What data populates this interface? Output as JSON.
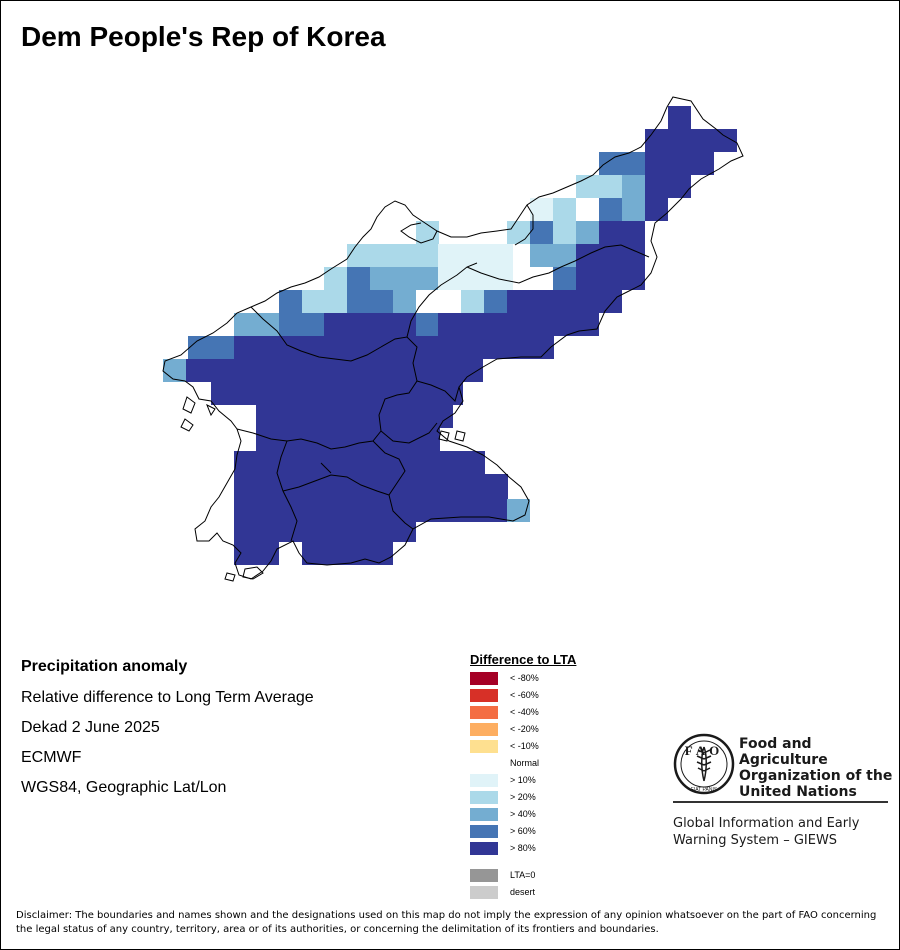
{
  "title": "Dem People's Rep of Korea",
  "info": {
    "heading": "Precipitation anomaly",
    "line1": "Relative difference to Long Term Average",
    "line2": "Dekad 2 June 2025",
    "line3": "ECMWF",
    "line4": "WGS84, Geographic Lat/Lon"
  },
  "legend": {
    "title": "Difference to LTA",
    "items": [
      {
        "label": "< -80%",
        "color": "#a50026"
      },
      {
        "label": "< -60%",
        "color": "#d73027"
      },
      {
        "label": "< -40%",
        "color": "#f46d43"
      },
      {
        "label": "< -20%",
        "color": "#fdae61"
      },
      {
        "label": "< -10%",
        "color": "#fee090"
      },
      {
        "label": "Normal",
        "color": "#ffffff"
      },
      {
        "label": "> 10%",
        "color": "#e0f3f8"
      },
      {
        "label": "> 20%",
        "color": "#abd9e9"
      },
      {
        "label": "> 40%",
        "color": "#74add1"
      },
      {
        "label": "> 60%",
        "color": "#4575b4"
      },
      {
        "label": "> 80%",
        "color": "#313695"
      }
    ],
    "extra": [
      {
        "label": "LTA=0",
        "color": "#969696"
      },
      {
        "label": "desert",
        "color": "#cccccc"
      }
    ]
  },
  "logo": {
    "icon": "fao-emblem-icon",
    "letters": "FAO",
    "motto": "FIAT PANIS",
    "org_name_line1": "Food and Agriculture",
    "org_name_line2": "Organization of the",
    "org_name_line3": "United Nations",
    "system_line1": "Global Information and Early",
    "system_line2": "Warning System – GIEWS"
  },
  "disclaimer": "Disclaimer: The boundaries and names shown and the designations used on this map do not imply the expression of any opinion whatsoever on the part of FAO concerning the legal status of any country, territory, area or of its authorities, or concerning the delimitation of its frontiers and boundaries."
}
